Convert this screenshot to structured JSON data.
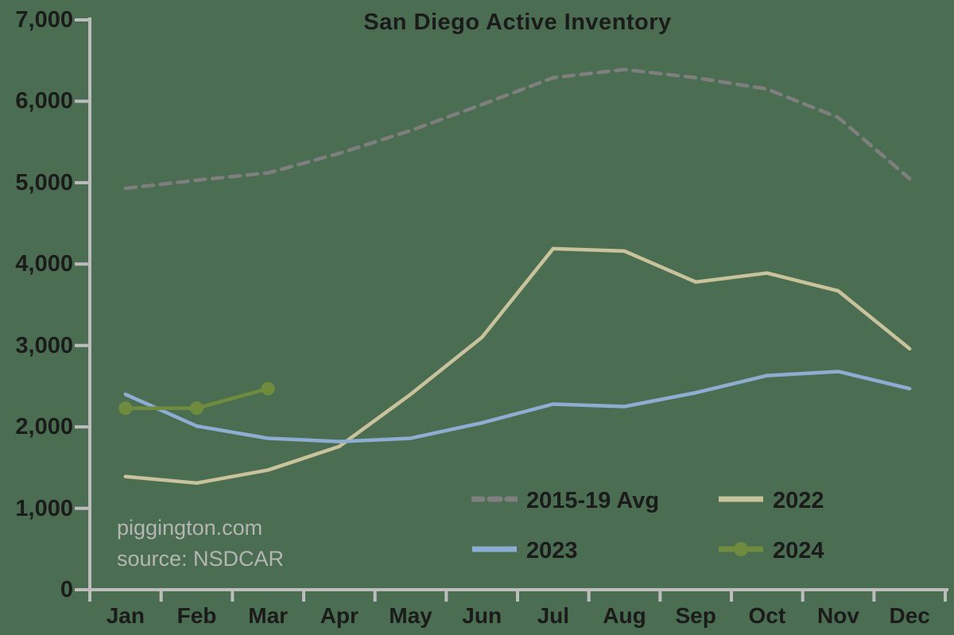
{
  "chart_data": {
    "type": "line",
    "title": "San Diego Active Inventory",
    "categories": [
      "Jan",
      "Feb",
      "Mar",
      "Apr",
      "May",
      "Jun",
      "Jul",
      "Aug",
      "Sep",
      "Oct",
      "Nov",
      "Dec"
    ],
    "series": [
      {
        "name": "2015-19 Avg",
        "style": "dashed",
        "color": "#7f7f7f",
        "values": [
          4930,
          5030,
          5120,
          5360,
          5640,
          5960,
          6290,
          6390,
          6290,
          6150,
          5800,
          5050
        ]
      },
      {
        "name": "2022",
        "style": "solid",
        "color": "#c9c39c",
        "values": [
          1390,
          1310,
          1470,
          1760,
          2400,
          3100,
          4190,
          4160,
          3780,
          3890,
          3670,
          2960
        ]
      },
      {
        "name": "2023",
        "style": "solid",
        "color": "#8eadd3",
        "values": [
          2400,
          2010,
          1860,
          1820,
          1860,
          2050,
          2280,
          2250,
          2420,
          2630,
          2680,
          2470
        ]
      },
      {
        "name": "2024",
        "style": "solid-marker",
        "color": "#6f8b3d",
        "values": [
          2230,
          2230,
          2470
        ]
      }
    ],
    "xlabel": "",
    "ylabel": "",
    "ylim": [
      0,
      7000
    ],
    "ytick_step": 1000,
    "ytick_labels": [
      "0",
      "1,000",
      "2,000",
      "3,000",
      "4,000",
      "5,000",
      "6,000",
      "7,000"
    ],
    "grid": false,
    "legend_position": "inside-bottom-right"
  },
  "watermark": {
    "line1": "piggington.com",
    "line2": "source: NSDCAR"
  },
  "colors": {
    "background": "#4b6e52",
    "axis": "#bdbdbd",
    "text": "#1b1b1b",
    "watermark": "#b5b5b5"
  }
}
